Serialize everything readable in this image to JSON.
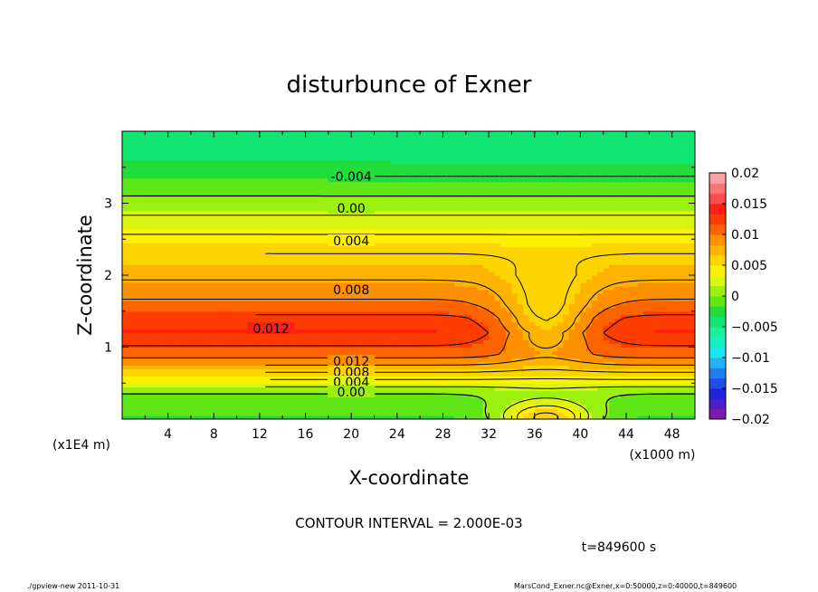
{
  "chart_data": {
    "type": "heatmap",
    "title": "disturbunce of Exner",
    "xlabel": "X-coordinate",
    "ylabel": "Z-coordinate",
    "x_unit": "(x1000 m)",
    "y_unit": "(x1E4 m)",
    "xlim": [
      0,
      50
    ],
    "ylim": [
      0,
      4
    ],
    "x_ticks": [
      "4",
      "8",
      "12",
      "16",
      "20",
      "24",
      "28",
      "32",
      "36",
      "40",
      "44",
      "48"
    ],
    "x_tick_values": [
      4,
      8,
      12,
      16,
      20,
      24,
      28,
      32,
      36,
      40,
      44,
      48
    ],
    "y_ticks": [
      "1",
      "2",
      "3"
    ],
    "y_tick_values": [
      1,
      2,
      3
    ],
    "colorbar": {
      "labels": [
        "0.02",
        "0.015",
        "0.01",
        "0.005",
        "0",
        "−0.005",
        "−0.01",
        "−0.015",
        "−0.02"
      ],
      "min": -0.02,
      "max": 0.02,
      "colors": [
        "#7f18b0",
        "#4a1fc8",
        "#1e22dc",
        "#1f4fe8",
        "#1f7ff0",
        "#22b4f6",
        "#1ce6f2",
        "#12f0c6",
        "#1af0a0",
        "#12e672",
        "#22dc3c",
        "#60e616",
        "#9cf010",
        "#dcf412",
        "#fcf200",
        "#fcd400",
        "#fcb400",
        "#fc9000",
        "#fc6400",
        "#fc3c00",
        "#fc2010",
        "#fc4c4c",
        "#fc7474",
        "#fca2a2"
      ]
    },
    "contour_interval": "CONTOUR INTERVAL = 2.000E-03",
    "contour_labels": [
      "-0.004",
      "0.00",
      "0.004",
      "0.008",
      "0.012",
      "0.012",
      "0.008",
      "0.004",
      "0.00"
    ],
    "field_profile_z_km": [
      0,
      2,
      3.5,
      4.5,
      5.5,
      6.5,
      7.5,
      9,
      12,
      14,
      16,
      18,
      20,
      23,
      25,
      27,
      29,
      31,
      33,
      36,
      40
    ],
    "field_profile_value": [
      -0.002,
      -0.001,
      0.0,
      0.002,
      0.004,
      0.006,
      0.008,
      0.011,
      0.0135,
      0.0125,
      0.0105,
      0.009,
      0.0075,
      0.006,
      0.0045,
      0.003,
      0.0015,
      0.0,
      -0.0015,
      -0.0035,
      -0.004
    ],
    "anomaly_center_x": 37
  },
  "time_label": "t=849600 s",
  "footer_left": "./gpview-new   2011-10-31",
  "footer_right": "MarsCond_Exner.nc@Exner,x=0:50000,z=0:40000,t=849600"
}
